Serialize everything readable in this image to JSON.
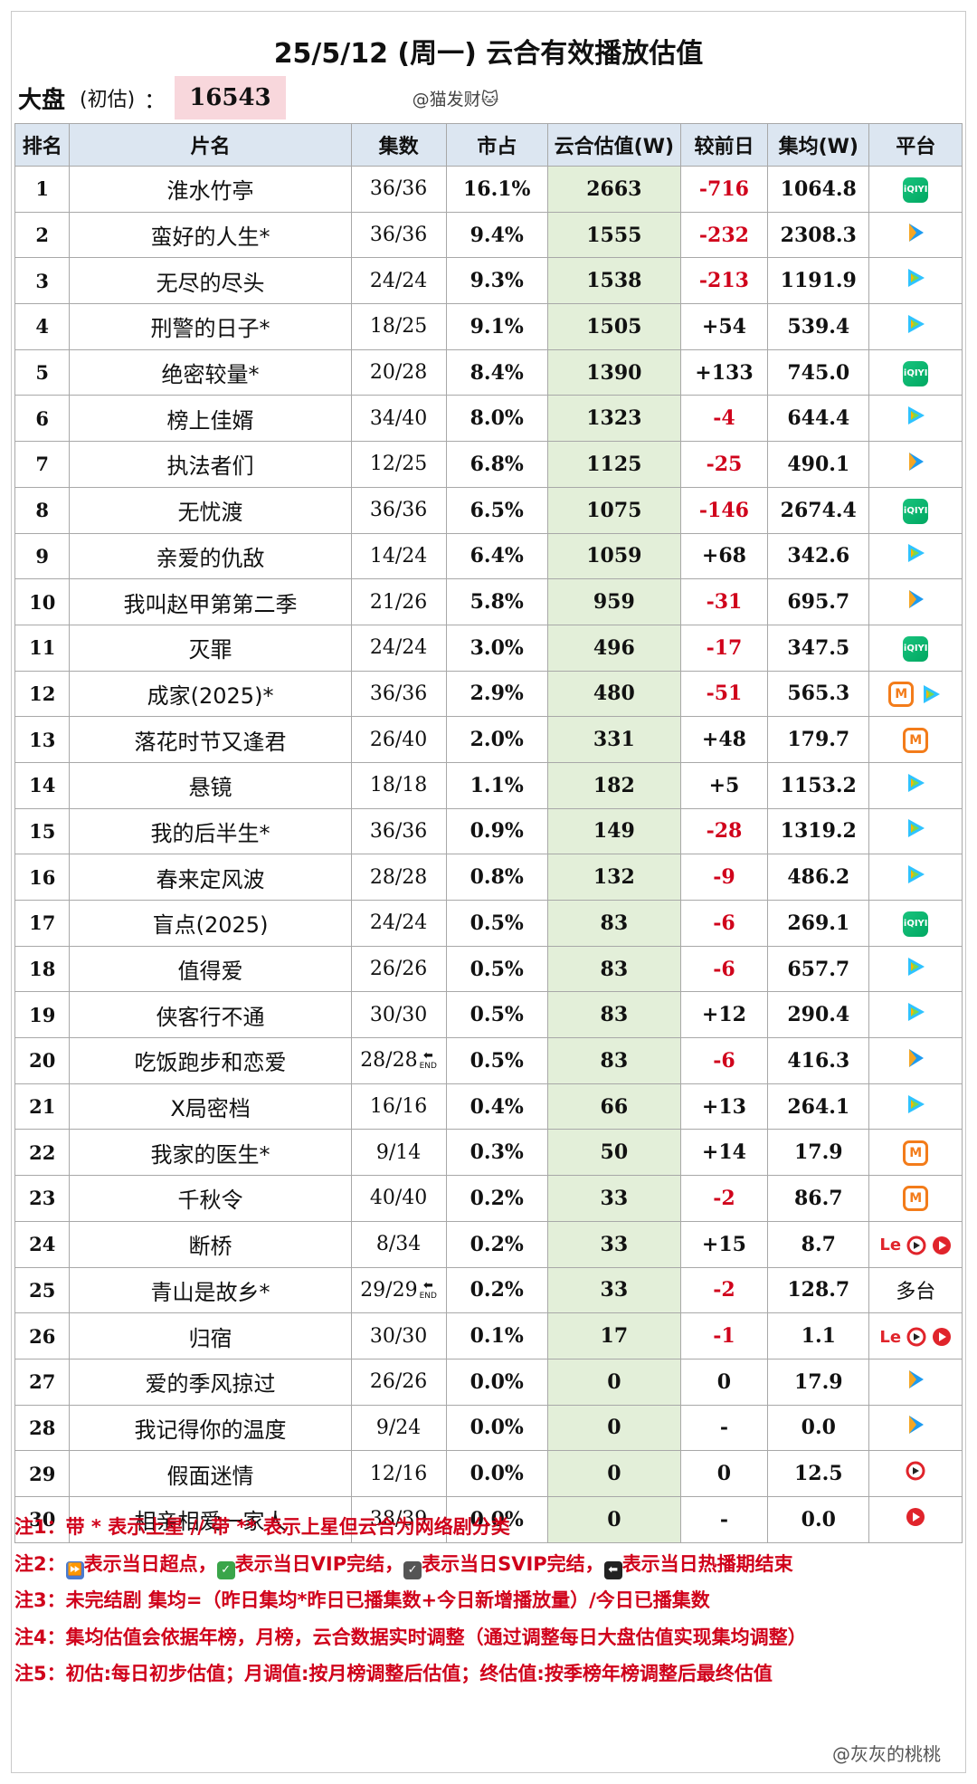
{
  "title": "25/5/12 (周一) 云合有效播放估值",
  "market": {
    "label": "大盘",
    "sub": "(初估)",
    "colon": "：",
    "value": "16543"
  },
  "watermark": "@猫发财🐱",
  "headers": {
    "rank": "排名",
    "title": "片名",
    "episodes": "集数",
    "share": "市占",
    "estimate": "云合估值(W)",
    "change": "较前日",
    "avg": "集均(W)",
    "platform": "平台"
  },
  "colors": {
    "header_bg": "#dce6f1",
    "estimate_bg": "#e3efd9",
    "negative": "#d0021b",
    "market_bg": "#f8d7dc"
  },
  "rows": [
    {
      "rank": "1",
      "title": "淮水竹亭",
      "episodes": "36/36",
      "end": false,
      "share": "16.1%",
      "estimate": "2663",
      "change": "-716",
      "avg": "1064.8",
      "platform": [
        "iqiyi-icon"
      ]
    },
    {
      "rank": "2",
      "title": "蛮好的人生*",
      "episodes": "36/36",
      "end": false,
      "share": "9.4%",
      "estimate": "1555",
      "change": "-232",
      "avg": "2308.3",
      "platform": [
        "youku-icon"
      ]
    },
    {
      "rank": "3",
      "title": "无尽的尽头",
      "episodes": "24/24",
      "end": false,
      "share": "9.3%",
      "estimate": "1538",
      "change": "-213",
      "avg": "1191.9",
      "platform": [
        "tencent-video-icon"
      ]
    },
    {
      "rank": "4",
      "title": "刑警的日子*",
      "episodes": "18/25",
      "end": false,
      "share": "9.1%",
      "estimate": "1505",
      "change": "+54",
      "avg": "539.4",
      "platform": [
        "tencent-video-icon"
      ]
    },
    {
      "rank": "5",
      "title": "绝密较量*",
      "episodes": "20/28",
      "end": false,
      "share": "8.4%",
      "estimate": "1390",
      "change": "+133",
      "avg": "745.0",
      "platform": [
        "iqiyi-icon"
      ]
    },
    {
      "rank": "6",
      "title": "榜上佳婿",
      "episodes": "34/40",
      "end": false,
      "share": "8.0%",
      "estimate": "1323",
      "change": "-4",
      "avg": "644.4",
      "platform": [
        "tencent-video-icon"
      ]
    },
    {
      "rank": "7",
      "title": "执法者们",
      "episodes": "12/25",
      "end": false,
      "share": "6.8%",
      "estimate": "1125",
      "change": "-25",
      "avg": "490.1",
      "platform": [
        "youku-icon"
      ]
    },
    {
      "rank": "8",
      "title": "无忧渡",
      "episodes": "36/36",
      "end": false,
      "share": "6.5%",
      "estimate": "1075",
      "change": "-146",
      "avg": "2674.4",
      "platform": [
        "iqiyi-icon"
      ]
    },
    {
      "rank": "9",
      "title": "亲爱的仇敌",
      "episodes": "14/24",
      "end": false,
      "share": "6.4%",
      "estimate": "1059",
      "change": "+68",
      "avg": "342.6",
      "platform": [
        "tencent-video-icon"
      ]
    },
    {
      "rank": "10",
      "title": "我叫赵甲第第二季",
      "episodes": "21/26",
      "end": false,
      "share": "5.8%",
      "estimate": "959",
      "change": "-31",
      "avg": "695.7",
      "platform": [
        "youku-icon"
      ]
    },
    {
      "rank": "11",
      "title": "灭罪",
      "episodes": "24/24",
      "end": false,
      "share": "3.0%",
      "estimate": "496",
      "change": "-17",
      "avg": "347.5",
      "platform": [
        "iqiyi-icon"
      ]
    },
    {
      "rank": "12",
      "title": "成家(2025)*",
      "episodes": "36/36",
      "end": false,
      "share": "2.9%",
      "estimate": "480",
      "change": "-51",
      "avg": "565.3",
      "platform": [
        "mgtv-icon",
        "tencent-video-icon"
      ]
    },
    {
      "rank": "13",
      "title": "落花时节又逢君",
      "episodes": "26/40",
      "end": false,
      "share": "2.0%",
      "estimate": "331",
      "change": "+48",
      "avg": "179.7",
      "platform": [
        "mgtv-icon"
      ]
    },
    {
      "rank": "14",
      "title": "悬镜",
      "episodes": "18/18",
      "end": false,
      "share": "1.1%",
      "estimate": "182",
      "change": "+5",
      "avg": "1153.2",
      "platform": [
        "tencent-video-icon"
      ]
    },
    {
      "rank": "15",
      "title": "我的后半生*",
      "episodes": "36/36",
      "end": false,
      "share": "0.9%",
      "estimate": "149",
      "change": "-28",
      "avg": "1319.2",
      "platform": [
        "tencent-video-icon"
      ]
    },
    {
      "rank": "16",
      "title": "春来定风波",
      "episodes": "28/28",
      "end": false,
      "share": "0.8%",
      "estimate": "132",
      "change": "-9",
      "avg": "486.2",
      "platform": [
        "tencent-video-icon"
      ]
    },
    {
      "rank": "17",
      "title": "盲点(2025)",
      "episodes": "24/24",
      "end": false,
      "share": "0.5%",
      "estimate": "83",
      "change": "-6",
      "avg": "269.1",
      "platform": [
        "iqiyi-icon"
      ]
    },
    {
      "rank": "18",
      "title": "值得爱",
      "episodes": "26/26",
      "end": false,
      "share": "0.5%",
      "estimate": "83",
      "change": "-6",
      "avg": "657.7",
      "platform": [
        "tencent-video-icon"
      ]
    },
    {
      "rank": "19",
      "title": "侠客行不通",
      "episodes": "30/30",
      "end": false,
      "share": "0.5%",
      "estimate": "83",
      "change": "+12",
      "avg": "290.4",
      "platform": [
        "tencent-video-icon"
      ]
    },
    {
      "rank": "20",
      "title": "吃饭跑步和恋爱",
      "episodes": "28/28",
      "end": true,
      "share": "0.5%",
      "estimate": "83",
      "change": "-6",
      "avg": "416.3",
      "platform": [
        "youku-icon"
      ]
    },
    {
      "rank": "21",
      "title": "X局密档",
      "episodes": "16/16",
      "end": false,
      "share": "0.4%",
      "estimate": "66",
      "change": "+13",
      "avg": "264.1",
      "platform": [
        "tencent-video-icon"
      ]
    },
    {
      "rank": "22",
      "title": "我家的医生*",
      "episodes": "9/14",
      "end": false,
      "share": "0.3%",
      "estimate": "50",
      "change": "+14",
      "avg": "17.9",
      "platform": [
        "mgtv-icon"
      ]
    },
    {
      "rank": "23",
      "title": "千秋令",
      "episodes": "40/40",
      "end": false,
      "share": "0.2%",
      "estimate": "33",
      "change": "-2",
      "avg": "86.7",
      "platform": [
        "mgtv-icon"
      ]
    },
    {
      "rank": "24",
      "title": "断桥",
      "episodes": "8/34",
      "end": false,
      "share": "0.2%",
      "estimate": "33",
      "change": "+15",
      "avg": "8.7",
      "platform": [
        "letv-icon",
        "sohu-icon",
        "cctv-icon"
      ]
    },
    {
      "rank": "25",
      "title": "青山是故乡*",
      "episodes": "29/29",
      "end": true,
      "share": "0.2%",
      "estimate": "33",
      "change": "-2",
      "avg": "128.7",
      "platform": [
        "multi-text"
      ]
    },
    {
      "rank": "26",
      "title": "归宿",
      "episodes": "30/30",
      "end": false,
      "share": "0.1%",
      "estimate": "17",
      "change": "-1",
      "avg": "1.1",
      "platform": [
        "letv-icon",
        "sohu-icon",
        "cctv-icon"
      ]
    },
    {
      "rank": "27",
      "title": "爱的季风掠过",
      "episodes": "26/26",
      "end": false,
      "share": "0.0%",
      "estimate": "0",
      "change": "0",
      "avg": "17.9",
      "platform": [
        "youku-icon"
      ]
    },
    {
      "rank": "28",
      "title": "我记得你的温度",
      "episodes": "9/24",
      "end": false,
      "share": "0.0%",
      "estimate": "0",
      "change": "-",
      "avg": "0.0",
      "platform": [
        "youku-icon"
      ]
    },
    {
      "rank": "29",
      "title": "假面迷情",
      "episodes": "12/16",
      "end": false,
      "share": "0.0%",
      "estimate": "0",
      "change": "0",
      "avg": "12.5",
      "platform": [
        "sohu-icon"
      ]
    },
    {
      "rank": "30",
      "title": "相亲相爱一家人",
      "episodes": "38/39",
      "end": false,
      "share": "0.0%",
      "estimate": "0",
      "change": "-",
      "avg": "0.0",
      "platform": [
        "cctv-icon"
      ]
    }
  ],
  "platform_multi_text": "多台",
  "end_mark": {
    "arrow": "⬅",
    "text": "END"
  },
  "notes": [
    {
      "label": "注1：",
      "text": "带 * 表示上星 // 带 ** 表示上星但云合为网络剧分类"
    },
    {
      "label": "注2：",
      "parts": [
        {
          "icon": "fast-forward-icon",
          "icon_color": "#4a7bd0",
          "glyph": "⏩",
          "text": "表示当日超点，"
        },
        {
          "icon": "check-green-icon",
          "icon_color": "#3aa54a",
          "glyph": "✓",
          "text": "表示当日VIP完结，"
        },
        {
          "icon": "check-gray-icon",
          "icon_color": "#555555",
          "glyph": "✓",
          "text": "表示当日SVIP完结，"
        },
        {
          "icon": "end-arrow-icon",
          "icon_color": "#222222",
          "glyph": "⬅",
          "text": "表示当日热播期结束"
        }
      ]
    },
    {
      "label": "注3：",
      "text": "未完结剧 集均=（昨日集均*昨日已播集数+今日新增播放量）/今日已播集数"
    },
    {
      "label": "注4：",
      "text": "集均估值会依据年榜，月榜，云合数据实时调整（通过调整每日大盘估值实现集均调整）"
    },
    {
      "label": "注5：",
      "text": "初估:每日初步估值；月调值:按月榜调整后估值；终估值:按季榜年榜调整后最终估值"
    }
  ],
  "footer_watermark": "@灰灰的桃桃"
}
